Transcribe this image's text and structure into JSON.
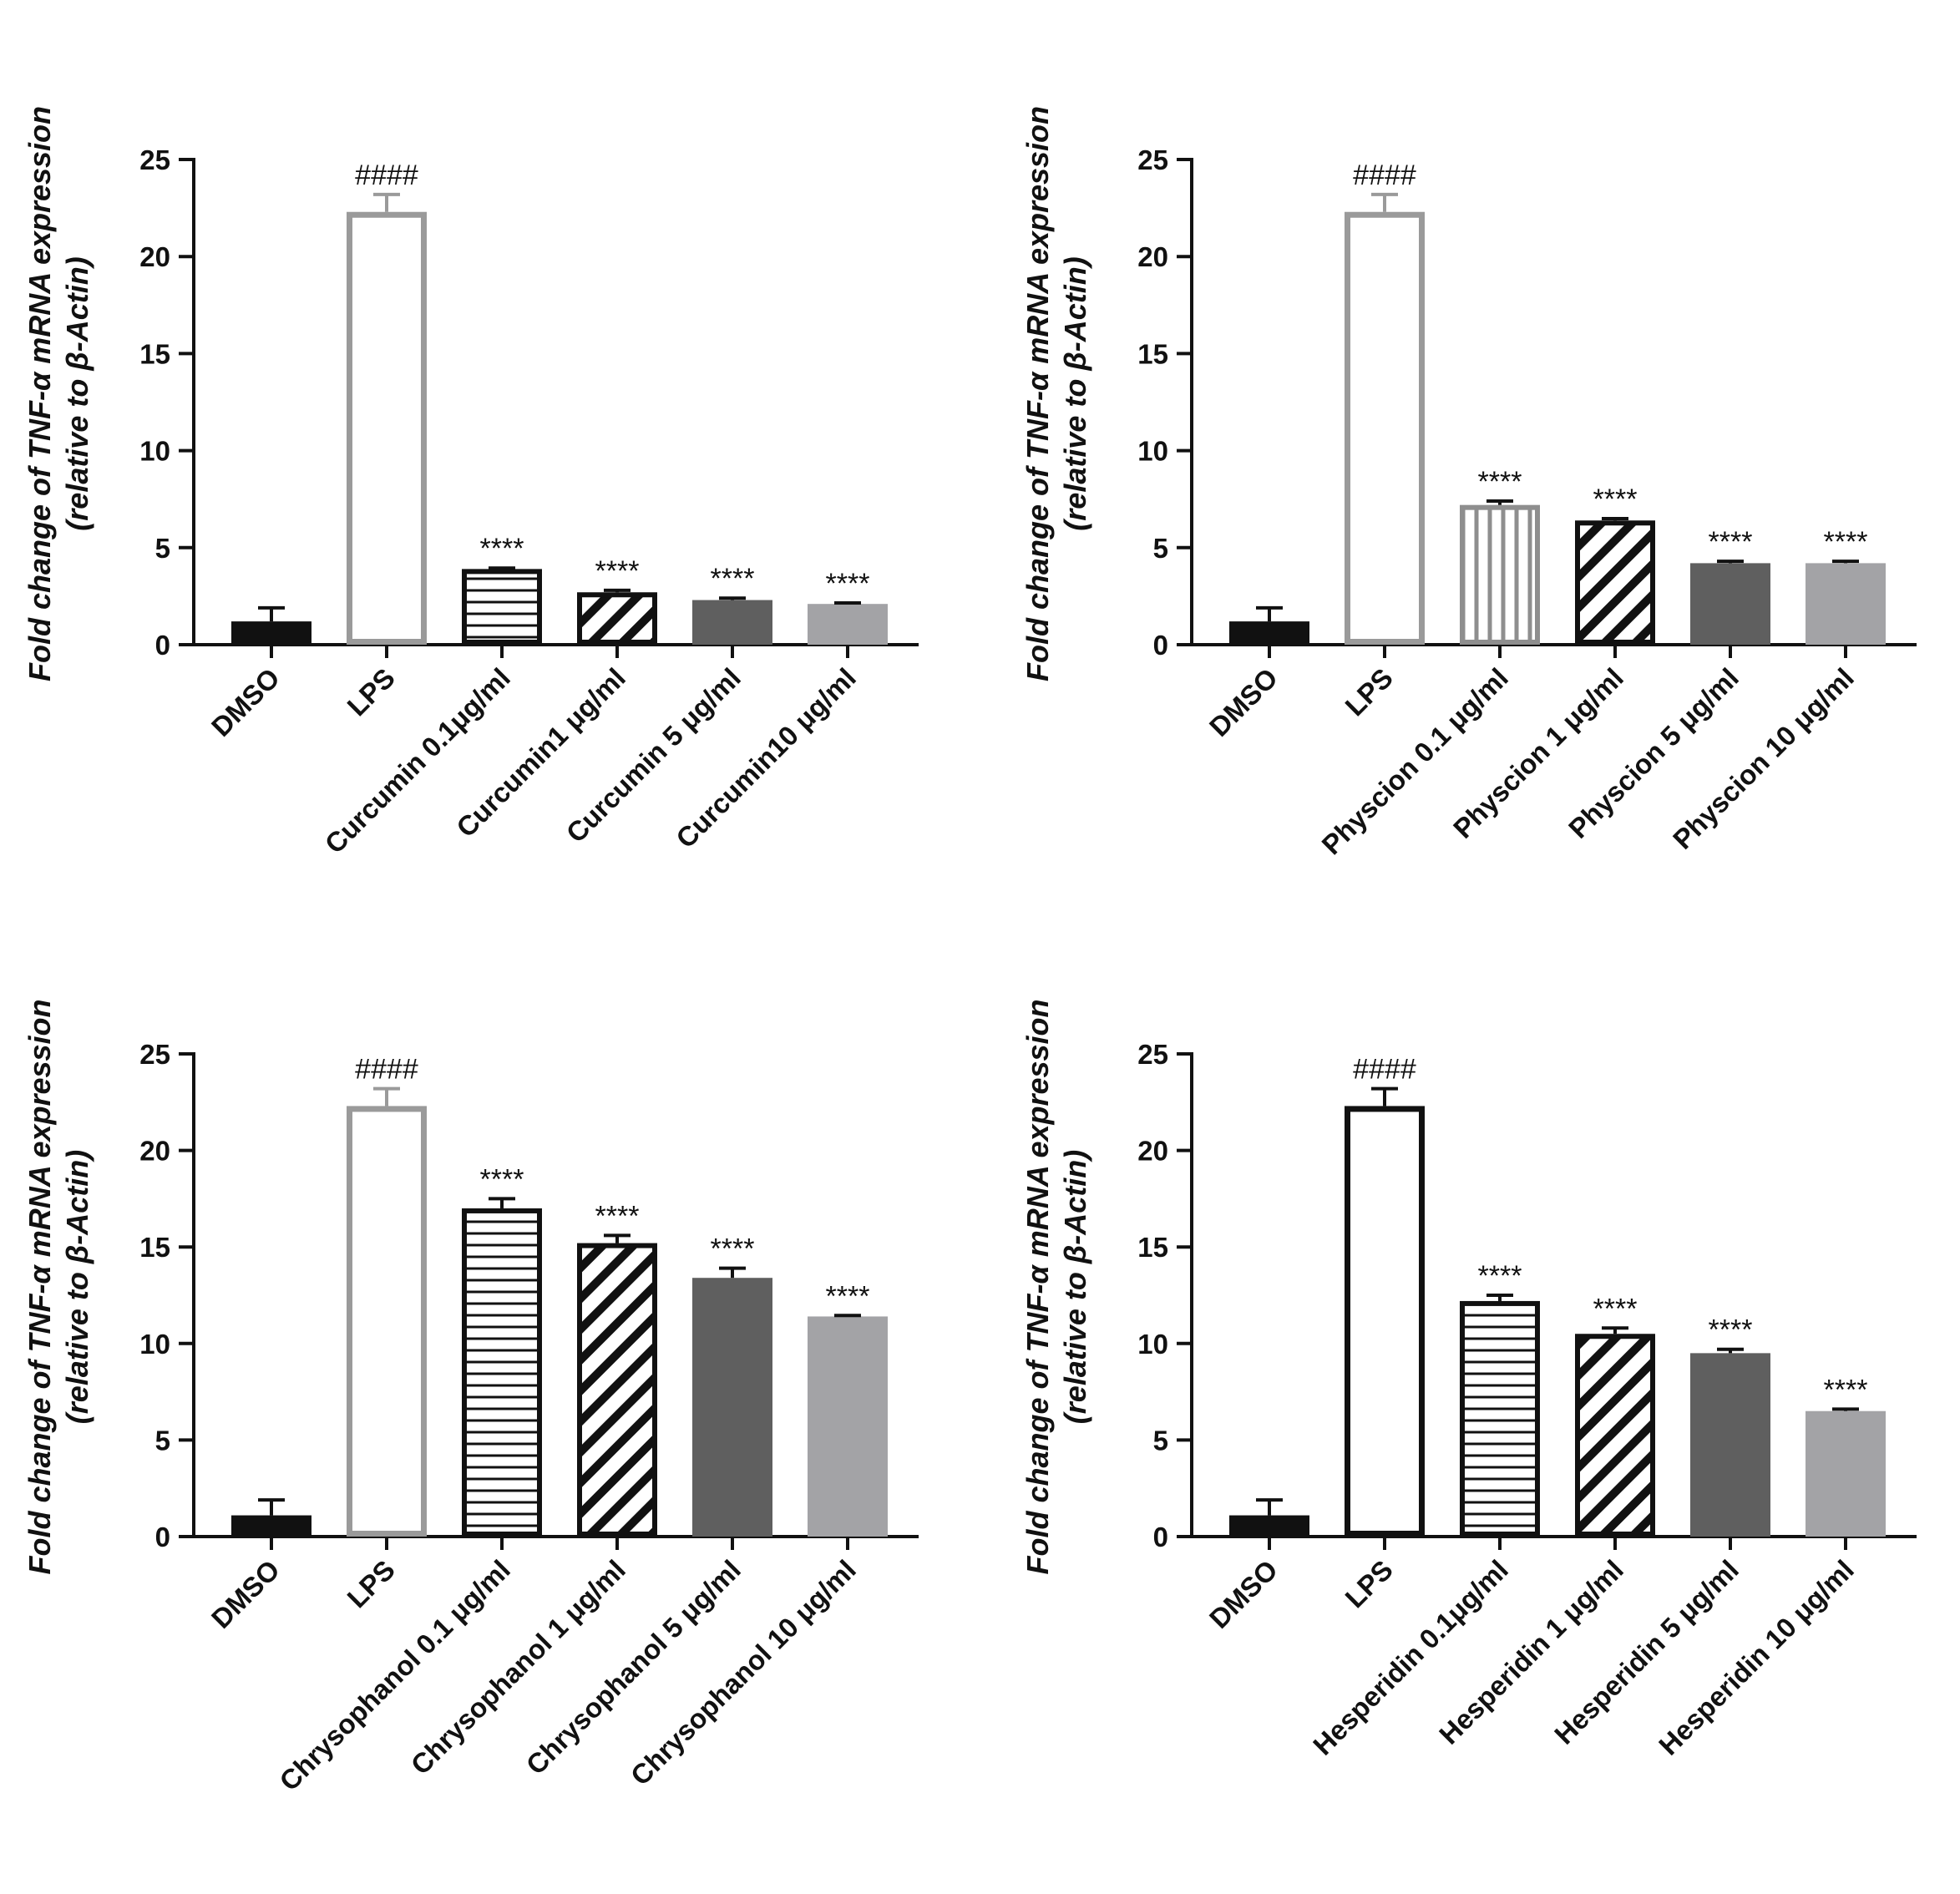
{
  "colors": {
    "black": "#111111",
    "lps_gray": "#9a9a9a",
    "dark_gray": "#5f5f5f",
    "light_gray": "#a3a3a6",
    "white": "#ffffff"
  },
  "chart_data": [
    {
      "type": "bar",
      "ylabel": "Fold change of TNF-α mRNA expression",
      "ylabel2": "(relative to β-Actin)",
      "ylim": [
        0,
        25
      ],
      "yticks": [
        0,
        5,
        10,
        15,
        20,
        25
      ],
      "categories": [
        "DMSO",
        "LPS",
        "Curcumin 0.1μg/ml",
        "Curcumin1 μg/ml",
        "Curcumin 5 μg/ml",
        "Curcumin10 μg/ml"
      ],
      "values": [
        1.2,
        22.3,
        3.9,
        2.7,
        2.3,
        2.1
      ],
      "errors": [
        0.7,
        0.9,
        0.05,
        0.1,
        0.1,
        0.05
      ],
      "annotations": [
        "",
        "####",
        "****",
        "****",
        "****",
        "****"
      ],
      "styles": [
        "solid-black",
        "outline-gray",
        "hlines",
        "diag",
        "solid-dark",
        "solid-light"
      ]
    },
    {
      "type": "bar",
      "ylabel": "Fold change of TNF-α mRNA expression",
      "ylabel2": "(relative to β-Actin)",
      "ylim": [
        0,
        25
      ],
      "yticks": [
        0,
        5,
        10,
        15,
        20,
        25
      ],
      "categories": [
        "DMSO",
        "LPS",
        "Physcion 0.1 μg/ml",
        "Physcion 1 μg/ml",
        "Physcion 5 μg/ml",
        "Physcion 10 μg/ml"
      ],
      "values": [
        1.2,
        22.3,
        7.2,
        6.4,
        4.2,
        4.2
      ],
      "errors": [
        0.7,
        0.9,
        0.2,
        0.1,
        0.1,
        0.1
      ],
      "annotations": [
        "",
        "####",
        "****",
        "****",
        "****",
        "****"
      ],
      "styles": [
        "solid-black",
        "outline-gray",
        "vlines",
        "diag",
        "solid-dark",
        "solid-light"
      ]
    },
    {
      "type": "bar",
      "ylabel": "Fold change of TNF-α mRNA expression",
      "ylabel2": "(relative to β-Actin)",
      "ylim": [
        0,
        25
      ],
      "yticks": [
        0,
        5,
        10,
        15,
        20,
        25
      ],
      "categories": [
        "DMSO",
        "LPS",
        "Chrysophanol 0.1 μg/ml",
        "Chrysophanol 1 μg/ml",
        "Chrysophanol 5 μg/ml",
        "Chrysophanol 10 μg/ml"
      ],
      "values": [
        1.1,
        22.3,
        17.0,
        15.2,
        13.4,
        11.4
      ],
      "errors": [
        0.8,
        0.9,
        0.5,
        0.4,
        0.5,
        0.05
      ],
      "annotations": [
        "",
        "####",
        "****",
        "****",
        "****",
        "****"
      ],
      "styles": [
        "solid-black",
        "outline-gray",
        "hlines",
        "diag",
        "solid-dark",
        "solid-light"
      ]
    },
    {
      "type": "bar",
      "ylabel": "Fold change of TNF-α mRNA expression",
      "ylabel2": "(relative to β-Actin)",
      "ylim": [
        0,
        25
      ],
      "yticks": [
        0,
        5,
        10,
        15,
        20,
        25
      ],
      "categories": [
        "DMSO",
        "LPS",
        "Hesperidin 0.1μg/ml",
        "Hesperidin 1 μg/ml",
        "Hesperidin 5 μg/ml",
        "Hesperidin 10 μg/ml"
      ],
      "values": [
        1.1,
        22.3,
        12.2,
        10.5,
        9.5,
        6.5
      ],
      "errors": [
        0.8,
        0.9,
        0.3,
        0.3,
        0.2,
        0.1
      ],
      "annotations": [
        "",
        "####",
        "****",
        "****",
        "****",
        "****"
      ],
      "styles": [
        "solid-black",
        "outline-black",
        "hlines",
        "diag",
        "solid-dark",
        "solid-light"
      ]
    }
  ]
}
